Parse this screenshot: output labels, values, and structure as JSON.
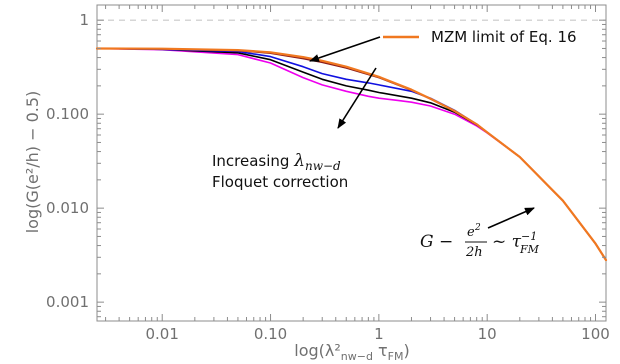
{
  "chart_data": {
    "type": "line",
    "xscale": "log",
    "yscale": "log",
    "xlim": [
      0.0025,
      125
    ],
    "ylim": [
      0.00063,
      1.45
    ],
    "x_ticks": [
      {
        "value": 0.01,
        "label": "0.01"
      },
      {
        "value": 0.1,
        "label": "0.10"
      },
      {
        "value": 1,
        "label": "1"
      },
      {
        "value": 10,
        "label": "10"
      },
      {
        "value": 100,
        "label": "100"
      }
    ],
    "y_ticks": [
      {
        "value": 0.001,
        "label": "0.001"
      },
      {
        "value": 0.01,
        "label": "0.010"
      },
      {
        "value": 0.1,
        "label": "0.100"
      },
      {
        "value": 1,
        "label": "1"
      }
    ],
    "xlabel": "log(λ²nw−d τFM)",
    "ylabel": "log(G(e²/h) − 0.5)",
    "reference_line": {
      "y": 1,
      "style": "dashed",
      "color": "#c8c8c8"
    },
    "series": [
      {
        "color": "#ee00ee",
        "points": [
          [
            0.0025,
            0.5
          ],
          [
            0.01,
            0.485
          ],
          [
            0.05,
            0.43
          ],
          [
            0.1,
            0.35
          ],
          [
            0.2,
            0.245
          ],
          [
            0.3,
            0.205
          ],
          [
            0.5,
            0.175
          ],
          [
            0.8,
            0.155
          ],
          [
            1.0,
            0.148
          ],
          [
            1.5,
            0.14
          ],
          [
            2.0,
            0.134
          ],
          [
            3.0,
            0.122
          ],
          [
            5.0,
            0.1
          ],
          [
            8.0,
            0.075
          ],
          [
            10,
            0.063
          ],
          [
            20,
            0.035
          ],
          [
            50,
            0.012
          ],
          [
            100,
            0.0042
          ],
          [
            125,
            0.0028
          ]
        ]
      },
      {
        "color": "#000000",
        "points": [
          [
            0.0025,
            0.5
          ],
          [
            0.01,
            0.49
          ],
          [
            0.05,
            0.45
          ],
          [
            0.1,
            0.38
          ],
          [
            0.2,
            0.28
          ],
          [
            0.3,
            0.235
          ],
          [
            0.5,
            0.2
          ],
          [
            0.8,
            0.18
          ],
          [
            1.0,
            0.17
          ],
          [
            2.0,
            0.148
          ],
          [
            3.0,
            0.132
          ],
          [
            5.0,
            0.105
          ],
          [
            8.0,
            0.077
          ],
          [
            10,
            0.064
          ],
          [
            20,
            0.035
          ],
          [
            50,
            0.012
          ],
          [
            100,
            0.0042
          ],
          [
            125,
            0.0028
          ]
        ]
      },
      {
        "color": "#1010e0",
        "points": [
          [
            0.0025,
            0.5
          ],
          [
            0.01,
            0.49
          ],
          [
            0.05,
            0.465
          ],
          [
            0.1,
            0.41
          ],
          [
            0.2,
            0.32
          ],
          [
            0.3,
            0.27
          ],
          [
            0.5,
            0.235
          ],
          [
            0.8,
            0.215
          ],
          [
            1.0,
            0.205
          ],
          [
            2.0,
            0.175
          ],
          [
            3.0,
            0.148
          ],
          [
            5.0,
            0.11
          ],
          [
            8.0,
            0.078
          ],
          [
            10,
            0.064
          ],
          [
            20,
            0.035
          ],
          [
            50,
            0.012
          ],
          [
            100,
            0.0042
          ],
          [
            125,
            0.0028
          ]
        ]
      },
      {
        "color": "#8b1a1a",
        "points": [
          [
            0.0025,
            0.5
          ],
          [
            0.01,
            0.495
          ],
          [
            0.05,
            0.475
          ],
          [
            0.1,
            0.445
          ],
          [
            0.2,
            0.39
          ],
          [
            0.3,
            0.355
          ],
          [
            0.5,
            0.31
          ],
          [
            1.0,
            0.245
          ],
          [
            2.0,
            0.18
          ],
          [
            3.0,
            0.145
          ],
          [
            5.0,
            0.108
          ],
          [
            8.0,
            0.078
          ],
          [
            10,
            0.064
          ],
          [
            20,
            0.035
          ],
          [
            50,
            0.012
          ],
          [
            100,
            0.0042
          ],
          [
            125,
            0.0028
          ]
        ]
      },
      {
        "name": "MZM limit of Eq. 16",
        "color": "#f07820",
        "points": [
          [
            0.0025,
            0.5
          ],
          [
            0.01,
            0.497
          ],
          [
            0.05,
            0.48
          ],
          [
            0.1,
            0.455
          ],
          [
            0.2,
            0.405
          ],
          [
            0.3,
            0.37
          ],
          [
            0.5,
            0.32
          ],
          [
            1.0,
            0.25
          ],
          [
            2.0,
            0.182
          ],
          [
            3.0,
            0.146
          ],
          [
            5.0,
            0.108
          ],
          [
            8.0,
            0.078
          ],
          [
            10,
            0.064
          ],
          [
            20,
            0.035
          ],
          [
            50,
            0.012
          ],
          [
            100,
            0.0042
          ],
          [
            125,
            0.0028
          ]
        ]
      }
    ],
    "annotations": [
      {
        "text": "Increasing λnw−d",
        "line2": "Floquet correction"
      },
      {
        "text": "G − e²/2h ~ τFM⁻¹"
      }
    ]
  }
}
